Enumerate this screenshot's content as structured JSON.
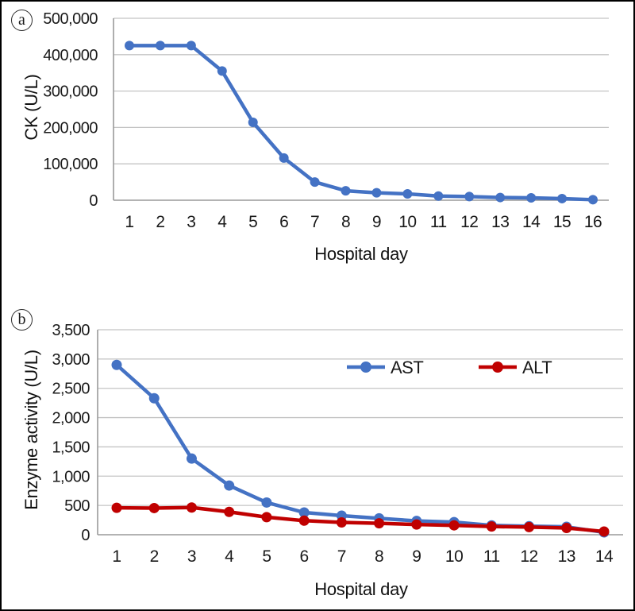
{
  "colors": {
    "series_blue": "#4472C4",
    "series_red": "#C00000",
    "gridline": "#C4C4C4",
    "axis": "#9A9A9A",
    "text": "#1A1A1A",
    "background": "#FFFFFF",
    "frame_border": "#000000"
  },
  "chart_data": [
    {
      "panel_label": "a",
      "type": "line",
      "xlabel": "Hospital day",
      "ylabel": "CK (U/L)",
      "x": [
        1,
        2,
        3,
        4,
        5,
        6,
        7,
        8,
        9,
        10,
        11,
        12,
        13,
        14,
        15,
        16
      ],
      "series": [
        {
          "name": "CK",
          "color": "#4472C4",
          "values": [
            425000,
            425000,
            425000,
            355000,
            214000,
            116000,
            50000,
            26000,
            20500,
            17500,
            11500,
            10000,
            7500,
            6500,
            4500,
            1500
          ]
        }
      ],
      "ylim": [
        0,
        500000
      ],
      "ytick_step": 100000,
      "ytick_labels": [
        "0",
        "100,000",
        "200,000",
        "300,000",
        "400,000",
        "500,000"
      ],
      "grid": true,
      "legend": false,
      "marker": "circle"
    },
    {
      "panel_label": "b",
      "type": "line",
      "xlabel": "Hospital day",
      "ylabel": "Enzyme activity (U/L)",
      "x": [
        1,
        2,
        3,
        4,
        5,
        6,
        7,
        8,
        9,
        10,
        11,
        12,
        13,
        14
      ],
      "series": [
        {
          "name": "AST",
          "color": "#4472C4",
          "values": [
            2900,
            2330,
            1300,
            840,
            550,
            380,
            325,
            280,
            235,
            215,
            160,
            145,
            135,
            40
          ]
        },
        {
          "name": "ALT",
          "color": "#C00000",
          "values": [
            460,
            455,
            465,
            390,
            300,
            240,
            210,
            195,
            175,
            160,
            140,
            130,
            115,
            55
          ]
        }
      ],
      "ylim": [
        0,
        3500
      ],
      "ytick_step": 500,
      "ytick_labels": [
        "0",
        "500",
        "1,000",
        "1,500",
        "2,000",
        "2,500",
        "3,000",
        "3,500"
      ],
      "grid": true,
      "legend": true,
      "legend_position": "top-inside",
      "marker": "circle"
    }
  ]
}
